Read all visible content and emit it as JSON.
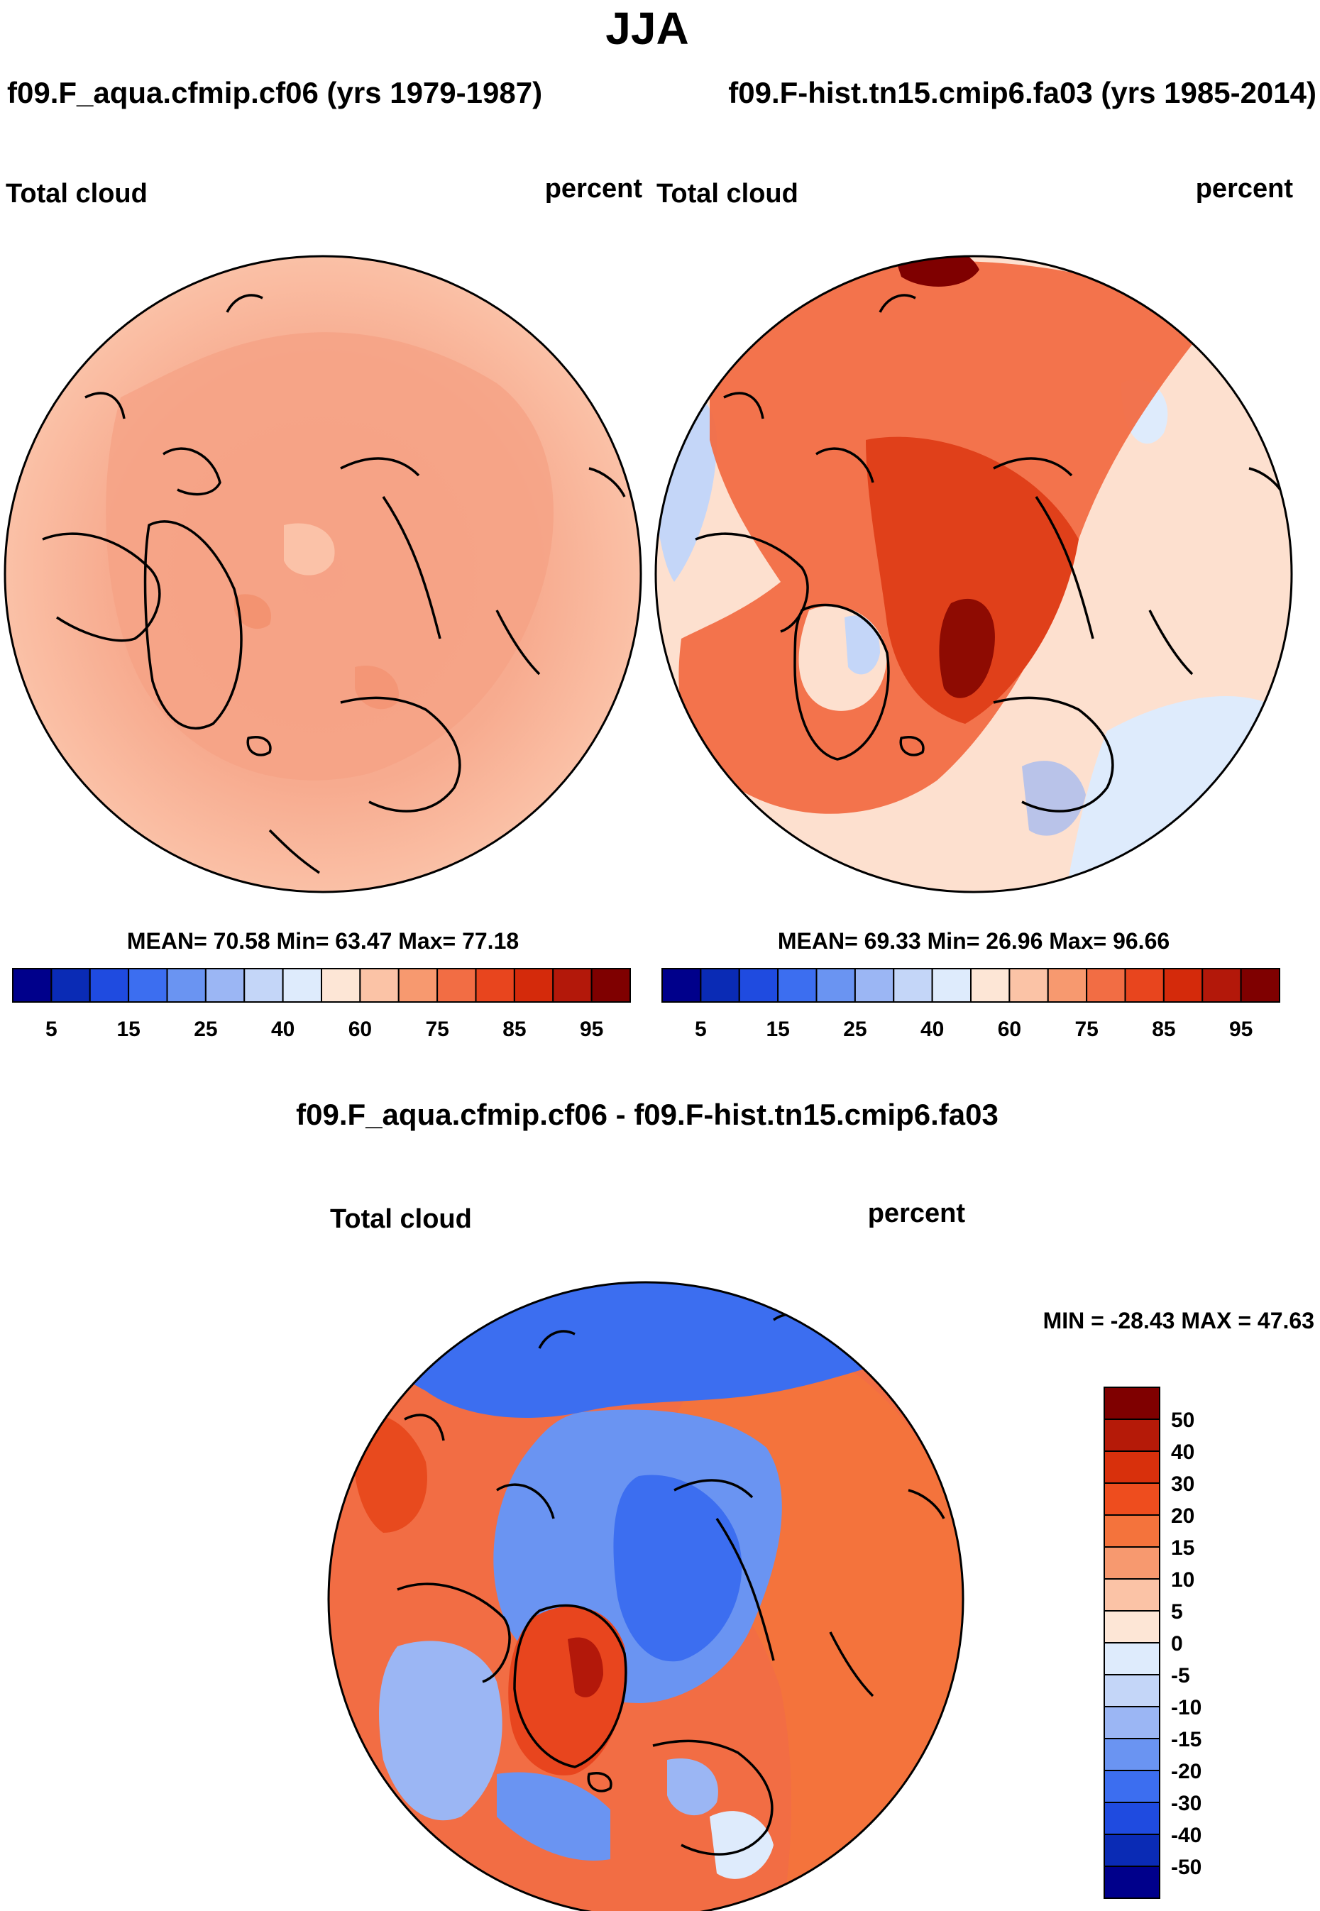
{
  "page": {
    "title": "JJA"
  },
  "panels": [
    {
      "id": "left",
      "run_title": "f09.F_aqua.cfmip.cf06 (yrs 1979-1987)",
      "variable": "Total cloud",
      "units": "percent",
      "stats_text": "MEAN=  70.58  Min=  63.47  Max=  77.18",
      "stats": {
        "mean": 70.58,
        "min": 63.47,
        "max": 77.18
      }
    },
    {
      "id": "right",
      "run_title": "f09.F-hist.tn15.cmip6.fa03 (yrs 1985-2014)",
      "variable": "Total cloud",
      "units": "percent",
      "stats_text": "MEAN=  69.33  Min=  26.96  Max=  96.66",
      "stats": {
        "mean": 69.33,
        "min": 26.96,
        "max": 96.66
      }
    }
  ],
  "colorbar_top": {
    "tick_labels": [
      "5",
      "15",
      "25",
      "40",
      "60",
      "75",
      "85",
      "95"
    ],
    "colors": [
      "#00008b",
      "#0a2bb5",
      "#1f4be0",
      "#3c6ef0",
      "#6a94f2",
      "#9bb6f4",
      "#c4d6f8",
      "#deebfc",
      "#fde6d6",
      "#fbc3a6",
      "#f7996f",
      "#f26d44",
      "#e8451e",
      "#d42a0b",
      "#b3180a",
      "#7f0000"
    ]
  },
  "diff_panel": {
    "title": "f09.F_aqua.cfmip.cf06 - f09.F-hist.tn15.cmip6.fa03",
    "variable": "Total cloud",
    "units": "percent",
    "minmax_text": "MIN = -28.43 MAX =  47.63",
    "stats": {
      "min": -28.43,
      "max": 47.63
    }
  },
  "colorbar_diff": {
    "tick_labels": [
      "50",
      "40",
      "30",
      "20",
      "15",
      "10",
      "5",
      "0",
      "-5",
      "-10",
      "-15",
      "-20",
      "-30",
      "-40",
      "-50"
    ],
    "colors": [
      "#7f0000",
      "#b51a08",
      "#d8300c",
      "#ee4d1e",
      "#f4733c",
      "#f7996f",
      "#fbc3a6",
      "#fde6d6",
      "#deebfc",
      "#c4d6f8",
      "#9bb6f4",
      "#6a94f2",
      "#3c6ef0",
      "#1f4be0",
      "#0a2bb5",
      "#00008b"
    ]
  },
  "chart_data": [
    {
      "type": "heatmap",
      "title": "Total cloud — f09.F_aqua.cfmip.cf06 (yrs 1979-1987)",
      "projection": "north polar stereographic",
      "season": "JJA",
      "units": "percent",
      "summary": {
        "mean": 70.58,
        "min": 63.47,
        "max": 77.18
      },
      "color_levels": [
        5,
        15,
        25,
        40,
        60,
        75,
        85,
        95
      ]
    },
    {
      "type": "heatmap",
      "title": "Total cloud — f09.F-hist.tn15.cmip6.fa03 (yrs 1985-2014)",
      "projection": "north polar stereographic",
      "season": "JJA",
      "units": "percent",
      "summary": {
        "mean": 69.33,
        "min": 26.96,
        "max": 96.66
      },
      "color_levels": [
        5,
        15,
        25,
        40,
        60,
        75,
        85,
        95
      ]
    },
    {
      "type": "heatmap",
      "title": "Total cloud difference — f09.F_aqua.cfmip.cf06 - f09.F-hist.tn15.cmip6.fa03",
      "projection": "north polar stereographic",
      "season": "JJA",
      "units": "percent",
      "summary": {
        "min": -28.43,
        "max": 47.63
      },
      "color_levels": [
        -50,
        -40,
        -30,
        -20,
        -15,
        -10,
        -5,
        0,
        5,
        10,
        15,
        20,
        30,
        40,
        50
      ]
    }
  ]
}
